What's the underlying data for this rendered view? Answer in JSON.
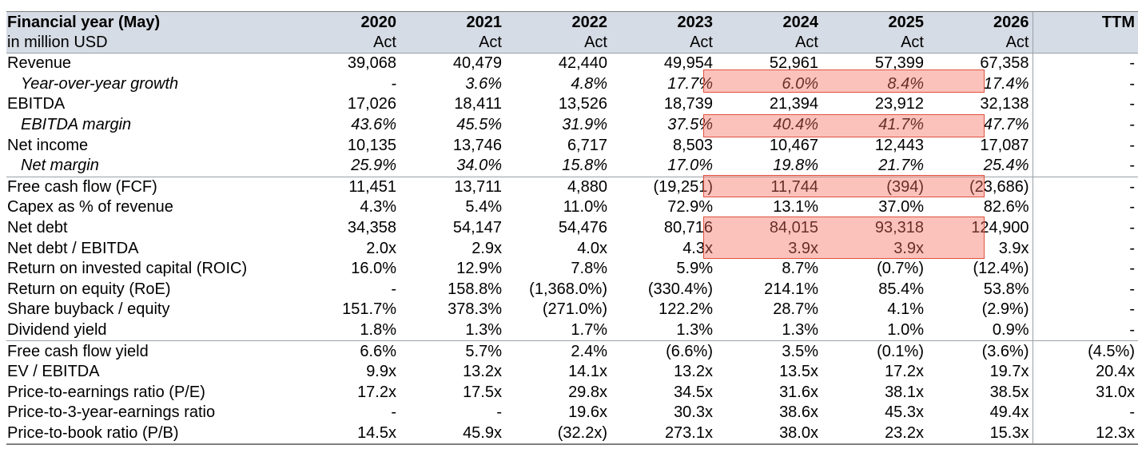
{
  "header": {
    "title": "Financial year (May)",
    "subtitle": "in million USD",
    "years": [
      "2020",
      "2021",
      "2022",
      "2023",
      "2024",
      "2025",
      "2026"
    ],
    "status": [
      "Act",
      "Act",
      "Act",
      "Act",
      "Act",
      "Act",
      "Act"
    ],
    "ttm_label": "TTM"
  },
  "rows": [
    {
      "label": "Revenue",
      "values": [
        "39,068",
        "40,479",
        "42,440",
        "49,954",
        "52,961",
        "57,399",
        "67,358"
      ],
      "ttm": "-"
    },
    {
      "label": "Year-over-year growth",
      "values": [
        "-",
        "3.6%",
        "4.8%",
        "17.7%",
        "6.0%",
        "8.4%",
        "17.4%"
      ],
      "ttm": "-"
    },
    {
      "label": "EBITDA",
      "values": [
        "17,026",
        "18,411",
        "13,526",
        "18,739",
        "21,394",
        "23,912",
        "32,138"
      ],
      "ttm": "-"
    },
    {
      "label": "EBITDA margin",
      "values": [
        "43.6%",
        "45.5%",
        "31.9%",
        "37.5%",
        "40.4%",
        "41.7%",
        "47.7%"
      ],
      "ttm": "-"
    },
    {
      "label": "Net income",
      "values": [
        "10,135",
        "13,746",
        "6,717",
        "8,503",
        "10,467",
        "12,443",
        "17,087"
      ],
      "ttm": "-"
    },
    {
      "label": "Net margin",
      "values": [
        "25.9%",
        "34.0%",
        "15.8%",
        "17.0%",
        "19.8%",
        "21.7%",
        "25.4%"
      ],
      "ttm": "-"
    },
    {
      "label": "Free cash flow (FCF)",
      "values": [
        "11,451",
        "13,711",
        "4,880",
        "(19,251)",
        "11,744",
        "(394)",
        "(23,686)"
      ],
      "ttm": "-"
    },
    {
      "label": "Capex as % of revenue",
      "values": [
        "4.3%",
        "5.4%",
        "11.0%",
        "72.9%",
        "13.1%",
        "37.0%",
        "82.6%"
      ],
      "ttm": "-"
    },
    {
      "label": "Net debt",
      "values": [
        "34,358",
        "54,147",
        "54,476",
        "80,716",
        "84,015",
        "93,318",
        "124,900"
      ],
      "ttm": "-"
    },
    {
      "label": "Net debt / EBITDA",
      "values": [
        "2.0x",
        "2.9x",
        "4.0x",
        "4.3x",
        "3.9x",
        "3.9x",
        "3.9x"
      ],
      "ttm": "-"
    },
    {
      "label": "Return on invested capital (ROIC)",
      "values": [
        "16.0%",
        "12.9%",
        "7.8%",
        "5.9%",
        "8.7%",
        "(0.7%)",
        "(12.4%)"
      ],
      "ttm": "-"
    },
    {
      "label": "Return on equity (RoE)",
      "values": [
        "-",
        "158.8%",
        "(1,368.0%)",
        "(330.4%)",
        "214.1%",
        "85.4%",
        "53.8%"
      ],
      "ttm": "-"
    },
    {
      "label": "Share buyback / equity",
      "values": [
        "151.7%",
        "378.3%",
        "(271.0%)",
        "122.2%",
        "28.7%",
        "4.1%",
        "(2.9%)"
      ],
      "ttm": "-"
    },
    {
      "label": "Dividend yield",
      "values": [
        "1.8%",
        "1.3%",
        "1.7%",
        "1.3%",
        "1.3%",
        "1.0%",
        "0.9%"
      ],
      "ttm": "-"
    },
    {
      "label": "Free cash flow yield",
      "values": [
        "6.6%",
        "5.7%",
        "2.4%",
        "(6.6%)",
        "3.5%",
        "(0.1%)",
        "(3.6%)"
      ],
      "ttm": "(4.5%)"
    },
    {
      "label": "EV / EBITDA",
      "values": [
        "9.9x",
        "13.2x",
        "14.1x",
        "13.2x",
        "13.5x",
        "17.2x",
        "19.7x"
      ],
      "ttm": "20.4x"
    },
    {
      "label": "Price-to-earnings ratio (P/E)",
      "values": [
        "17.2x",
        "17.5x",
        "29.8x",
        "34.5x",
        "31.6x",
        "38.1x",
        "38.5x"
      ],
      "ttm": "31.0x"
    },
    {
      "label": "Price-to-3-year-earnings ratio",
      "values": [
        "-",
        "-",
        "19.6x",
        "30.3x",
        "38.6x",
        "45.3x",
        "49.4x"
      ],
      "ttm": "-"
    },
    {
      "label": "Price-to-book ratio (P/B)",
      "values": [
        "14.5x",
        "45.9x",
        "(32.2x)",
        "273.1x",
        "38.0x",
        "23.2x",
        "15.3x"
      ],
      "ttm": "12.3x"
    }
  ]
}
